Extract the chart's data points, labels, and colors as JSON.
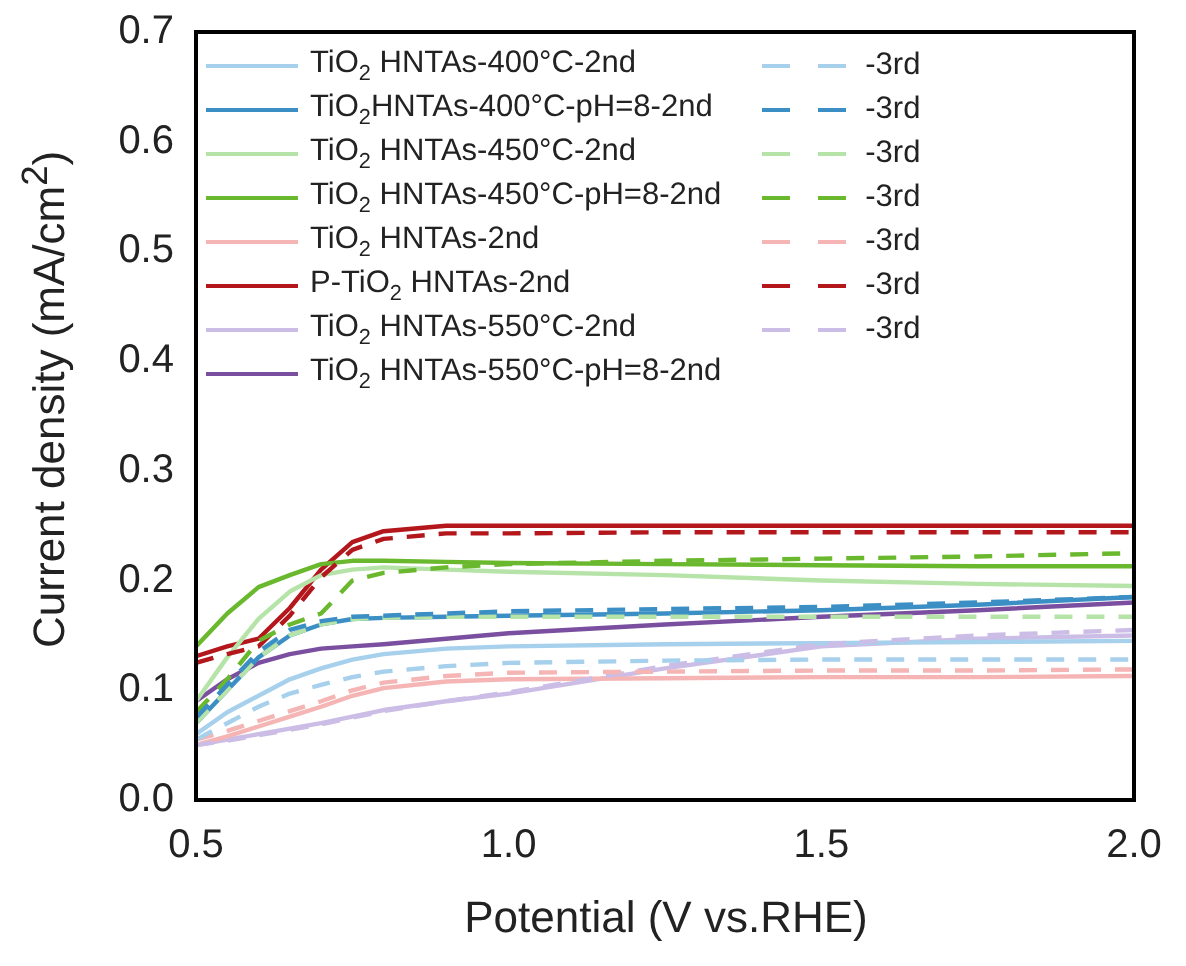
{
  "chart_data": {
    "type": "line",
    "xlabel": "Potential (V vs.RHE)",
    "ylabel": "Current density (mA/cm$^{2}$)",
    "xlim": [
      0.5,
      2.0
    ],
    "xticks": [
      0.5,
      {
        "value": 1,
        "label": "1.0"
      },
      1.5,
      {
        "value": 2,
        "label": "2.0"
      }
    ],
    "ylim": [
      0.0,
      0.7
    ],
    "yticks": [
      {
        "value": 0,
        "label": "0.0"
      },
      0.1,
      0.2,
      0.3,
      0.4,
      0.5,
      0.6,
      0.7
    ],
    "grid": false,
    "legend": "top",
    "marker": "none",
    "x": [
      0.5,
      0.55,
      0.6,
      0.65,
      0.7,
      0.75,
      0.8,
      0.9,
      1.0,
      1.25,
      1.5,
      1.75,
      2.0
    ],
    "series": [
      {
        "name": "TiO$_{2}$ HNTAs-400°C-2nd",
        "color": "#a6d0ec",
        "line_style": "solid",
        "values": [
          0.06,
          0.08,
          0.095,
          0.11,
          0.12,
          0.128,
          0.133,
          0.138,
          0.14,
          0.142,
          0.143,
          0.144,
          0.145
        ]
      },
      {
        "name": "TiO$_{2}$HNTAs-400°C-pH=8-2nd",
        "color": "#3b8fc4",
        "line_style": "solid",
        "values": [
          0.07,
          0.1,
          0.13,
          0.15,
          0.16,
          0.165,
          0.166,
          0.167,
          0.168,
          0.17,
          0.173,
          0.178,
          0.185
        ]
      },
      {
        "name": "TiO$_{2}$ HNTAs-450°C-2nd",
        "color": "#b6e3a8",
        "line_style": "solid",
        "values": [
          0.09,
          0.13,
          0.165,
          0.19,
          0.205,
          0.21,
          0.212,
          0.21,
          0.208,
          0.205,
          0.2,
          0.197,
          0.195
        ]
      },
      {
        "name": "TiO$_{2}$ HNTAs-450°C-pH=8-2nd",
        "color": "#6ab82e",
        "line_style": "solid",
        "values": [
          0.14,
          0.17,
          0.194,
          0.205,
          0.215,
          0.218,
          0.218,
          0.217,
          0.216,
          0.215,
          0.214,
          0.213,
          0.213
        ]
      },
      {
        "name": "TiO$_{2}$ HNTAs-2nd",
        "color": "#f5b5b5",
        "line_style": "solid",
        "values": [
          0.05,
          0.058,
          0.067,
          0.076,
          0.085,
          0.095,
          0.102,
          0.108,
          0.11,
          0.111,
          0.112,
          0.112,
          0.113
        ]
      },
      {
        "name": "P-TiO$_{2}$ HNTAs-2nd",
        "color": "#b3161b",
        "line_style": "solid",
        "values": [
          0.131,
          0.14,
          0.147,
          0.175,
          0.21,
          0.235,
          0.245,
          0.25,
          0.25,
          0.25,
          0.25,
          0.25,
          0.25
        ]
      },
      {
        "name": "TiO$_{2}$ HNTAs-550°C-2nd",
        "color": "#cbbde6",
        "line_style": "solid",
        "values": [
          0.05,
          0.055,
          0.06,
          0.065,
          0.07,
          0.076,
          0.082,
          0.09,
          0.097,
          0.12,
          0.14,
          0.147,
          0.15
        ]
      },
      {
        "name": "TiO$_{2}$ HNTAs-550°C-pH=8-2nd",
        "color": "#7b4fa0",
        "line_style": "solid",
        "values": [
          0.09,
          0.11,
          0.125,
          0.133,
          0.138,
          0.14,
          0.142,
          0.147,
          0.152,
          0.16,
          0.167,
          0.173,
          0.18
        ]
      },
      {
        "name": "-3rd",
        "color": "#a6d0ec",
        "line_style": "dashed",
        "values": [
          0.055,
          0.07,
          0.085,
          0.097,
          0.105,
          0.112,
          0.117,
          0.122,
          0.125,
          0.127,
          0.128,
          0.128,
          0.128
        ]
      },
      {
        "name": "-3rd",
        "color": "#3b8fc4",
        "line_style": "dashed",
        "values": [
          0.075,
          0.105,
          0.135,
          0.155,
          0.163,
          0.167,
          0.168,
          0.17,
          0.172,
          0.174,
          0.176,
          0.18,
          0.185
        ]
      },
      {
        "name": "-3rd",
        "color": "#b6e3a8",
        "line_style": "dashed",
        "values": [
          0.07,
          0.1,
          0.13,
          0.15,
          0.16,
          0.165,
          0.166,
          0.167,
          0.167,
          0.167,
          0.167,
          0.167,
          0.167
        ]
      },
      {
        "name": "-3rd",
        "color": "#6ab82e",
        "line_style": "dashed",
        "values": [
          0.08,
          0.11,
          0.145,
          0.16,
          0.17,
          0.2,
          0.207,
          0.212,
          0.215,
          0.218,
          0.22,
          0.222,
          0.225
        ]
      },
      {
        "name": "-3rd",
        "color": "#f5b5b5",
        "line_style": "dashed",
        "values": [
          0.055,
          0.063,
          0.072,
          0.081,
          0.09,
          0.1,
          0.107,
          0.113,
          0.116,
          0.117,
          0.118,
          0.118,
          0.119
        ]
      },
      {
        "name": "-3rd",
        "color": "#b3161b",
        "line_style": "dashed",
        "values": [
          0.125,
          0.133,
          0.14,
          0.168,
          0.203,
          0.228,
          0.238,
          0.243,
          0.243,
          0.244,
          0.244,
          0.244,
          0.244
        ]
      },
      {
        "name": "-3rd",
        "color": "#cbbde6",
        "line_style": "dashed",
        "values": [
          0.05,
          0.054,
          0.059,
          0.064,
          0.069,
          0.075,
          0.081,
          0.09,
          0.098,
          0.122,
          0.142,
          0.15,
          0.155
        ]
      }
    ]
  }
}
